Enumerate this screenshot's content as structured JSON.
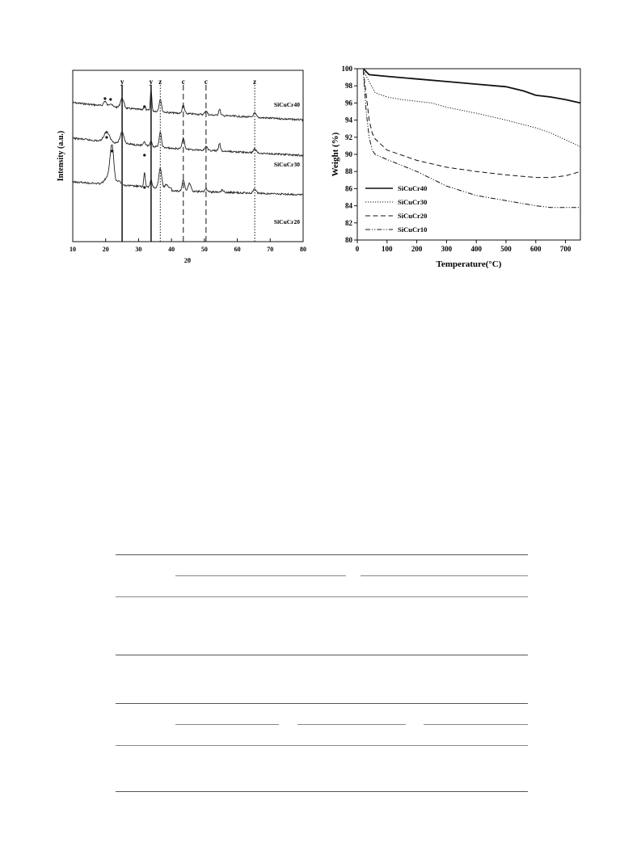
{
  "xrd_chart": {
    "chart_data": {
      "type": "line",
      "xlabel": "2θ",
      "ylabel": "Intensity (a.u.)",
      "xlim": [
        10,
        80
      ],
      "xticks": [
        10,
        20,
        30,
        40,
        50,
        60,
        70,
        80
      ],
      "series": [
        {
          "name": "SiCuCr40"
        },
        {
          "name": "SiCuCr30"
        },
        {
          "name": "SiCuCr20"
        }
      ],
      "reference_lines": [
        {
          "x": 25.0,
          "label": "y",
          "style": "solid"
        },
        {
          "x": 33.8,
          "label": "y",
          "style": "solid"
        },
        {
          "x": 36.6,
          "label": "z",
          "style": "dotted"
        },
        {
          "x": 43.6,
          "label": "c",
          "style": "dashed"
        },
        {
          "x": 50.5,
          "label": "c",
          "style": "dashed"
        },
        {
          "x": 65.3,
          "label": "z",
          "style": "dotted"
        }
      ],
      "dot_markers": [
        {
          "series": "SiCuCr40",
          "x": [
            19.8,
            21.5,
            31.8
          ]
        },
        {
          "series": "SiCuCr30",
          "x": [
            20.3,
            31.8
          ]
        },
        {
          "series": "SiCuCr20",
          "x": [
            21.9,
            31.8
          ]
        }
      ]
    }
  },
  "tga_chart": {
    "chart_data": {
      "type": "line",
      "xlabel": "Temperature(°C)",
      "ylabel": "Weight (%)",
      "xlim": [
        0,
        750
      ],
      "ylim": [
        80,
        100
      ],
      "xticks": [
        0,
        100,
        200,
        300,
        400,
        500,
        600,
        700
      ],
      "yticks": [
        80,
        82,
        84,
        86,
        88,
        90,
        92,
        94,
        96,
        98,
        100
      ],
      "legend": "bottom-left",
      "series": [
        {
          "name": "SiCuCr40",
          "style": "solid",
          "x": [
            20,
            40,
            100,
            200,
            300,
            400,
            500,
            560,
            600,
            650,
            700,
            750
          ],
          "y": [
            100,
            99.3,
            99.1,
            98.8,
            98.5,
            98.2,
            97.9,
            97.4,
            96.9,
            96.7,
            96.4,
            96.0
          ]
        },
        {
          "name": "SiCuCr30",
          "style": "dotted",
          "x": [
            20,
            40,
            60,
            100,
            150,
            200,
            250,
            300,
            400,
            500,
            600,
            650,
            700,
            750
          ],
          "y": [
            99.8,
            98.5,
            97.2,
            96.7,
            96.4,
            96.2,
            96.0,
            95.5,
            94.8,
            94.0,
            93.1,
            92.5,
            91.7,
            90.9
          ]
        },
        {
          "name": "SiCuCr20",
          "style": "dashed",
          "x": [
            20,
            30,
            40,
            50,
            60,
            100,
            200,
            300,
            400,
            500,
            600,
            650,
            700,
            750
          ],
          "y": [
            99.8,
            97.0,
            94.0,
            92.5,
            91.8,
            90.5,
            89.3,
            88.5,
            88.0,
            87.6,
            87.3,
            87.3,
            87.5,
            88.0
          ]
        },
        {
          "name": "SiCuCr10",
          "style": "dash-dot",
          "x": [
            20,
            30,
            40,
            50,
            60,
            100,
            200,
            300,
            400,
            500,
            600,
            650,
            700,
            750
          ],
          "y": [
            99.8,
            95.0,
            92.0,
            90.5,
            90.0,
            89.4,
            88.0,
            86.3,
            85.2,
            84.6,
            84.0,
            83.8,
            83.8,
            83.8
          ]
        }
      ]
    }
  },
  "colors": {
    "ink": "#111111",
    "rule": "#555555"
  }
}
